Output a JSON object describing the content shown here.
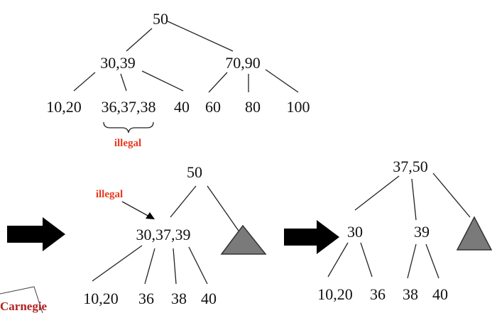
{
  "colors": {
    "note": "#e8391f",
    "logo": "#b22222",
    "subtree_fill": "#7a7a7a",
    "arrow": "#000000",
    "edge": "#222222"
  },
  "tree1": {
    "root": "50",
    "left": "30,39",
    "right": "70,90",
    "leaf1": "10,20",
    "leaf2": "36,37,38",
    "leaf3": "40",
    "leaf4": "60",
    "leaf5": "80",
    "leaf6": "100",
    "note": "illegal"
  },
  "tree2": {
    "root": "50",
    "node": "30,37,39",
    "leaf1": "10,20",
    "leaf2": "36",
    "leaf3": "38",
    "leaf4": "40",
    "note": "illegal"
  },
  "tree3": {
    "root": "37,50",
    "left": "30",
    "right": "39",
    "leaf1": "10,20",
    "leaf2": "36",
    "leaf3": "38",
    "leaf4": "40"
  },
  "logo": {
    "text": "Carnegie"
  }
}
